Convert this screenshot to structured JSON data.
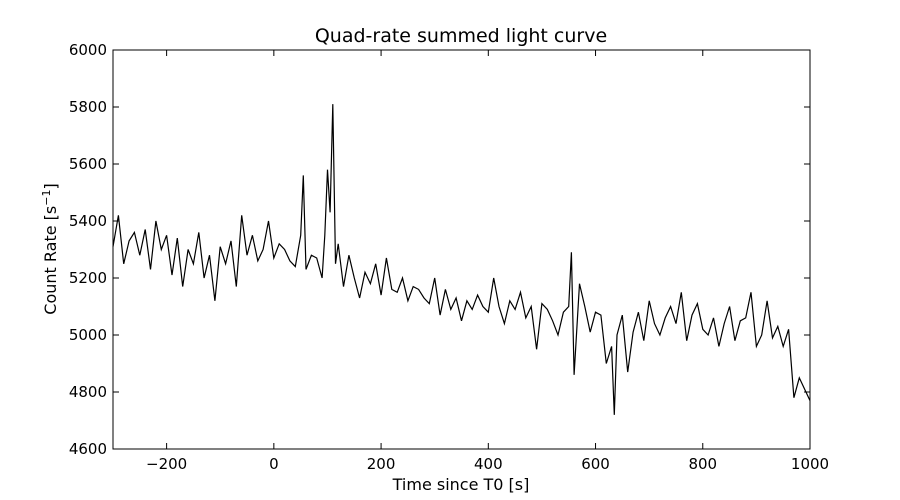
{
  "chart_data": {
    "type": "line",
    "title": "Quad-rate summed light curve",
    "xlabel": "Time since T0 [s]",
    "ylabel_main": "Count Rate [s",
    "ylabel_sup": "−1",
    "ylabel_end": "]",
    "xlim": [
      -300,
      1000
    ],
    "ylim": [
      4600,
      6000
    ],
    "xticks": [
      -200,
      0,
      200,
      400,
      600,
      800,
      1000
    ],
    "xtick_labels": [
      "−200",
      "0",
      "200",
      "400",
      "600",
      "800",
      "1000"
    ],
    "yticks": [
      4600,
      4800,
      5000,
      5200,
      5400,
      5600,
      5800,
      6000
    ],
    "ytick_labels": [
      "4600",
      "4800",
      "5000",
      "5200",
      "5400",
      "5600",
      "5800",
      "6000"
    ],
    "grid": false,
    "line_color": "#000000",
    "series": [
      {
        "x": [
          -300,
          -290,
          -280,
          -270,
          -260,
          -250,
          -240,
          -230,
          -220,
          -210,
          -200,
          -190,
          -180,
          -170,
          -160,
          -150,
          -140,
          -130,
          -120,
          -110,
          -100,
          -90,
          -80,
          -70,
          -60,
          -50,
          -40,
          -30,
          -20,
          -10,
          0,
          10,
          20,
          30,
          40,
          50,
          55,
          60,
          70,
          80,
          90,
          95,
          100,
          105,
          110,
          115,
          120,
          130,
          140,
          150,
          160,
          170,
          180,
          190,
          200,
          210,
          220,
          230,
          240,
          250,
          260,
          270,
          280,
          290,
          300,
          310,
          320,
          330,
          340,
          350,
          360,
          370,
          380,
          390,
          400,
          410,
          420,
          430,
          440,
          450,
          460,
          470,
          480,
          490,
          500,
          510,
          520,
          530,
          540,
          550,
          555,
          560,
          570,
          580,
          590,
          600,
          610,
          620,
          630,
          635,
          640,
          650,
          660,
          670,
          680,
          690,
          700,
          710,
          720,
          730,
          740,
          750,
          760,
          770,
          780,
          790,
          800,
          810,
          820,
          830,
          840,
          850,
          860,
          870,
          880,
          890,
          900,
          910,
          920,
          930,
          940,
          950,
          960,
          970,
          980,
          990,
          1000
        ],
        "values": [
          5310,
          5420,
          5250,
          5330,
          5360,
          5280,
          5370,
          5230,
          5400,
          5300,
          5350,
          5210,
          5340,
          5170,
          5300,
          5250,
          5360,
          5200,
          5280,
          5120,
          5310,
          5250,
          5330,
          5170,
          5420,
          5280,
          5350,
          5260,
          5300,
          5400,
          5270,
          5320,
          5300,
          5260,
          5240,
          5350,
          5560,
          5230,
          5280,
          5270,
          5200,
          5350,
          5580,
          5430,
          5810,
          5250,
          5320,
          5170,
          5280,
          5200,
          5130,
          5220,
          5180,
          5250,
          5140,
          5270,
          5160,
          5150,
          5200,
          5120,
          5170,
          5160,
          5130,
          5110,
          5200,
          5070,
          5160,
          5090,
          5130,
          5050,
          5120,
          5090,
          5140,
          5100,
          5080,
          5200,
          5100,
          5040,
          5120,
          5090,
          5150,
          5060,
          5100,
          4950,
          5110,
          5090,
          5050,
          5000,
          5080,
          5100,
          5290,
          4860,
          5180,
          5100,
          5010,
          5080,
          5070,
          4900,
          4960,
          4720,
          5000,
          5070,
          4870,
          5010,
          5080,
          4980,
          5120,
          5040,
          5000,
          5060,
          5100,
          5040,
          5150,
          4980,
          5070,
          5110,
          5020,
          5000,
          5060,
          4960,
          5040,
          5100,
          4980,
          5050,
          5060,
          5150,
          4960,
          5000,
          5120,
          4990,
          5030,
          4960,
          5020,
          4780,
          4850,
          4810,
          4770
        ]
      }
    ]
  }
}
